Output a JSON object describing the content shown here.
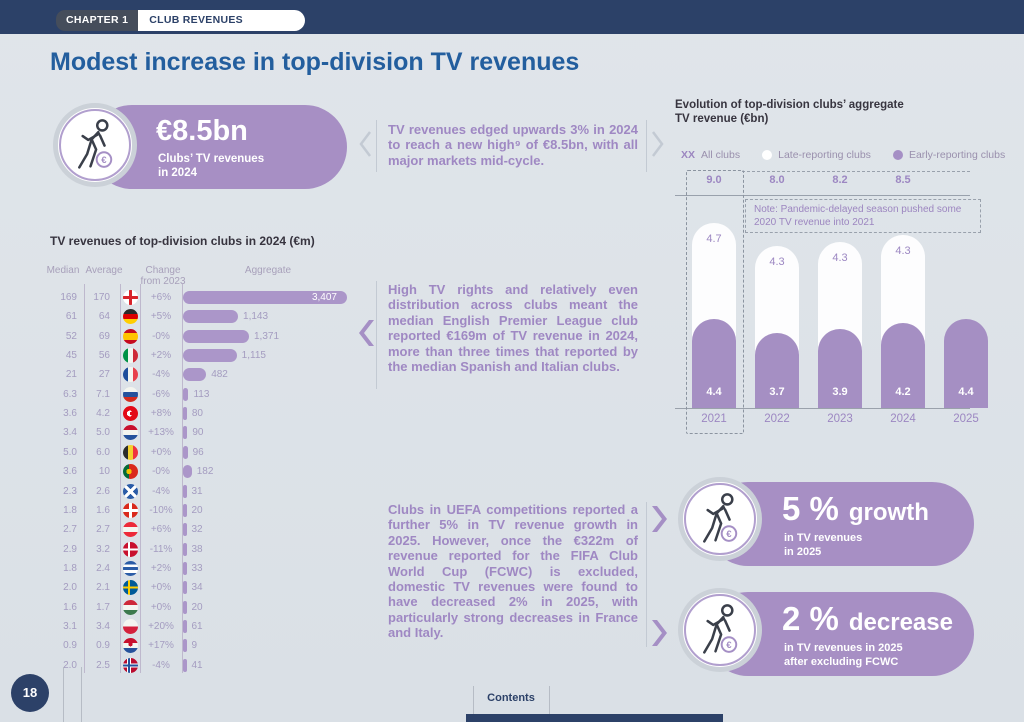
{
  "header": {
    "chapter_tag": "CHAPTER 1",
    "section_tag": "CLUB REVENUES",
    "page_title": "Modest increase in top-division TV revenues"
  },
  "hero": {
    "icon": "footballer-euro-icon",
    "value": "€8.5bn",
    "sub1": "Clubs’ TV revenues",
    "sub2": "in 2024"
  },
  "paragraphs": {
    "p1": "TV revenues edged upwards 3% in 2024 to reach a new high⁹ of €8.5bn, with all major markets mid-cycle.",
    "p2": "High TV rights and relatively even distribution across clubs meant the median English Premier League club reported €169m of TV revenue in 2024, more than three times that reported by the median Spanish and Italian clubs.",
    "p3": "Clubs in UEFA competitions reported a further 5% in TV revenue growth in 2025. However, once the €322m of revenue reported for the FIFA Club World Cup (FCWC) is excluded, domestic TV revenues were found to have decreased 2% in 2025, with particularly strong decreases in France and Italy."
  },
  "table": {
    "title": "TV revenues of top-division clubs in 2024 (€m)",
    "headers": [
      "Median",
      "Average",
      "Change from 2023",
      "Aggregate"
    ],
    "max_aggregate": 3407,
    "rows": [
      {
        "median": "169",
        "average": "170",
        "flag": "england",
        "change": "+6%",
        "aggregate": "3,407",
        "value": 3407
      },
      {
        "median": "61",
        "average": "64",
        "flag": "germany",
        "change": "+5%",
        "aggregate": "1,143",
        "value": 1143
      },
      {
        "median": "52",
        "average": "69",
        "flag": "spain",
        "change": "-0%",
        "aggregate": "1,371",
        "value": 1371
      },
      {
        "median": "45",
        "average": "56",
        "flag": "italy",
        "change": "+2%",
        "aggregate": "1,115",
        "value": 1115
      },
      {
        "median": "21",
        "average": "27",
        "flag": "france",
        "change": "-4%",
        "aggregate": "482",
        "value": 482
      },
      {
        "median": "6.3",
        "average": "7.1",
        "flag": "russia",
        "change": "-6%",
        "aggregate": "113",
        "value": 113
      },
      {
        "median": "3.6",
        "average": "4.2",
        "flag": "turkey",
        "change": "+8%",
        "aggregate": "80",
        "value": 80
      },
      {
        "median": "3.4",
        "average": "5.0",
        "flag": "netherlands",
        "change": "+13%",
        "aggregate": "90",
        "value": 90
      },
      {
        "median": "5.0",
        "average": "6.0",
        "flag": "belgium",
        "change": "+0%",
        "aggregate": "96",
        "value": 96
      },
      {
        "median": "3.6",
        "average": "10",
        "flag": "portugal",
        "change": "-0%",
        "aggregate": "182",
        "value": 182
      },
      {
        "median": "2.3",
        "average": "2.6",
        "flag": "scotland",
        "change": "-4%",
        "aggregate": "31",
        "value": 31
      },
      {
        "median": "1.8",
        "average": "1.6",
        "flag": "switzerland",
        "change": "-10%",
        "aggregate": "20",
        "value": 20
      },
      {
        "median": "2.7",
        "average": "2.7",
        "flag": "austria",
        "change": "+6%",
        "aggregate": "32",
        "value": 32
      },
      {
        "median": "2.9",
        "average": "3.2",
        "flag": "denmark",
        "change": "-11%",
        "aggregate": "38",
        "value": 38
      },
      {
        "median": "1.8",
        "average": "2.4",
        "flag": "greece",
        "change": "+2%",
        "aggregate": "33",
        "value": 33
      },
      {
        "median": "2.0",
        "average": "2.1",
        "flag": "sweden",
        "change": "+0%",
        "aggregate": "34",
        "value": 34
      },
      {
        "median": "1.6",
        "average": "1.7",
        "flag": "hungary",
        "change": "+0%",
        "aggregate": "20",
        "value": 20
      },
      {
        "median": "3.1",
        "average": "3.4",
        "flag": "poland",
        "change": "+20%",
        "aggregate": "61",
        "value": 61
      },
      {
        "median": "0.9",
        "average": "0.9",
        "flag": "croatia",
        "change": "+17%",
        "aggregate": "9",
        "value": 9
      },
      {
        "median": "2.0",
        "average": "2.5",
        "flag": "norway",
        "change": "-4%",
        "aggregate": "41",
        "value": 41
      }
    ]
  },
  "chart_data": {
    "type": "bar",
    "title": "Evolution of top-division clubs’ aggregate TV revenue (€bn)",
    "categories": [
      "2021",
      "2022",
      "2023",
      "2024",
      "2025"
    ],
    "series": [
      {
        "name": "Early-reporting clubs",
        "color": "#a58fc3",
        "values": [
          4.4,
          3.7,
          3.9,
          4.2,
          4.4
        ]
      },
      {
        "name": "Late-reporting clubs",
        "color": "#ffffff",
        "values": [
          4.7,
          4.3,
          4.3,
          4.3,
          null
        ]
      }
    ],
    "totals": [
      9.0,
      8.0,
      8.2,
      8.5,
      null
    ],
    "legend_xx": "XX",
    "legend": [
      "All clubs",
      "Late-reporting clubs",
      "Early-reporting clubs"
    ],
    "note": "Note: Pandemic-delayed season pushed some 2020 TV revenue into 2021",
    "highlight_category": "2021",
    "ylim": [
      0,
      9.1
    ],
    "grid": false,
    "legend_position": "top"
  },
  "callouts": [
    {
      "value": "5 %",
      "keyword": "growth",
      "sub1": "in TV revenues",
      "sub2": "in 2025",
      "icon": "footballer-euro-icon"
    },
    {
      "value": "2 %",
      "keyword": "decrease",
      "sub1": "in TV revenues in 2025",
      "sub2": "after excluding FCWC",
      "icon": "footballer-euro-icon"
    }
  ],
  "footer": {
    "page_number": "18",
    "contents_label": "Contents"
  },
  "colors": {
    "navy": "#2c4168",
    "title_blue": "#235e9e",
    "accent_purple": "#a78fc4"
  }
}
